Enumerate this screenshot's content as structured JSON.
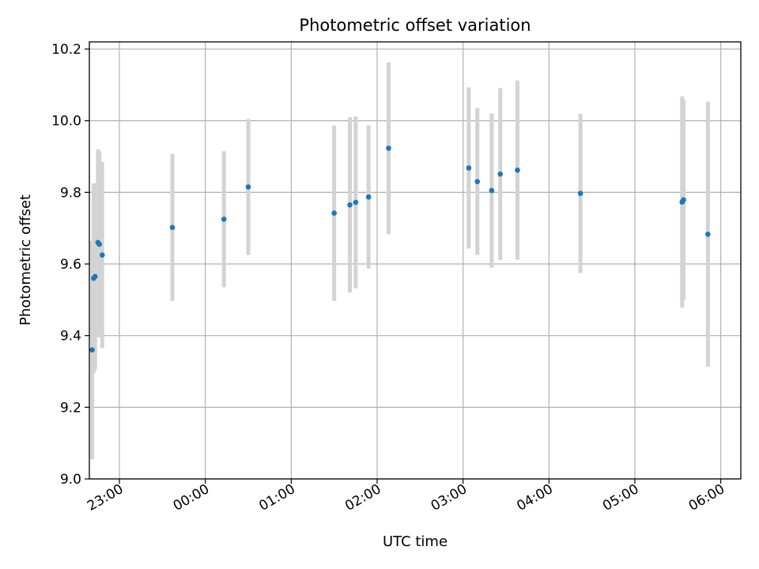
{
  "chart_data": {
    "type": "scatter",
    "title": "Photometric offset variation",
    "xlabel": "UTC time",
    "ylabel": "Photometric offset",
    "x_ticks": [
      "23:00",
      "00:00",
      "01:00",
      "02:00",
      "03:00",
      "04:00",
      "05:00",
      "06:00"
    ],
    "y_ticks": [
      "9.0",
      "9.2",
      "9.4",
      "9.6",
      "9.8",
      "10.0",
      "10.2"
    ],
    "xlim": [
      "22:39",
      "06:14"
    ],
    "ylim": [
      9.0,
      10.22
    ],
    "grid": true,
    "colors": {
      "point": "#1f77b4",
      "errorbar": "#d3d3d3",
      "grid": "#b0b0b0"
    },
    "points": [
      {
        "time": "22:41",
        "y": 9.36,
        "err": 0.305
      },
      {
        "time": "22:42",
        "y": 9.56,
        "err": 0.265
      },
      {
        "time": "22:43",
        "y": 9.565,
        "err": 0.26
      },
      {
        "time": "22:45",
        "y": 9.66,
        "err": 0.26
      },
      {
        "time": "22:46",
        "y": 9.655,
        "err": 0.26
      },
      {
        "time": "22:48",
        "y": 9.625,
        "err": 0.26
      },
      {
        "time": "23:37",
        "y": 9.702,
        "err": 0.205
      },
      {
        "time": "00:13",
        "y": 9.725,
        "err": 0.19
      },
      {
        "time": "00:30",
        "y": 9.815,
        "err": 0.19
      },
      {
        "time": "01:30",
        "y": 9.742,
        "err": 0.245
      },
      {
        "time": "01:41",
        "y": 9.765,
        "err": 0.245
      },
      {
        "time": "01:45",
        "y": 9.772,
        "err": 0.24
      },
      {
        "time": "01:54",
        "y": 9.787,
        "err": 0.2
      },
      {
        "time": "02:08",
        "y": 9.923,
        "err": 0.24
      },
      {
        "time": "03:04",
        "y": 9.868,
        "err": 0.225
      },
      {
        "time": "03:10",
        "y": 9.83,
        "err": 0.205
      },
      {
        "time": "03:20",
        "y": 9.805,
        "err": 0.215
      },
      {
        "time": "03:26",
        "y": 9.851,
        "err": 0.24
      },
      {
        "time": "03:38",
        "y": 9.862,
        "err": 0.25
      },
      {
        "time": "04:22",
        "y": 9.797,
        "err": 0.222
      },
      {
        "time": "05:33",
        "y": 9.773,
        "err": 0.295
      },
      {
        "time": "05:34",
        "y": 9.779,
        "err": 0.28
      },
      {
        "time": "05:51",
        "y": 9.683,
        "err": 0.37
      }
    ]
  }
}
